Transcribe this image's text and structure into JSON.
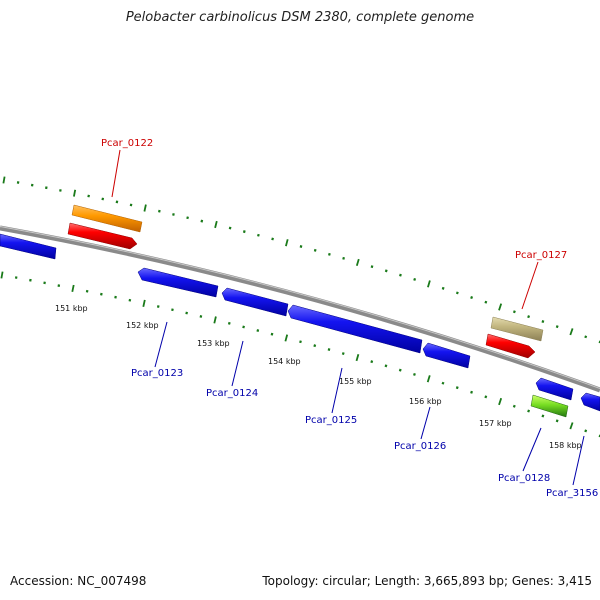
{
  "title": "Pelobacter carbinolicus DSM 2380, complete genome",
  "footer": {
    "accession": "Accession: NC_007498",
    "summary": "Topology: circular; Length: 3,665,893 bp; Genes: 3,415"
  },
  "colors": {
    "backbone": "#8a8a8a",
    "tick": "#1a7a1a",
    "forward_label": "#cc0000",
    "reverse_label": "#0000aa",
    "gene_blue": "#0a0ae6",
    "gene_red": "#ee0000",
    "gene_orange": "#ff9900",
    "gene_khaki": "#c2b680",
    "gene_green": "#33aa22"
  },
  "axis": {
    "tick_labels": [
      "151 kbp",
      "152 kbp",
      "153 kbp",
      "154 kbp",
      "155 kbp",
      "156 kbp",
      "157 kbp",
      "158 kbp"
    ]
  },
  "gene_labels": {
    "pcar_0122": "Pcar_0122",
    "pcar_0127": "Pcar_0127",
    "pcar_0123": "Pcar_0123",
    "pcar_0124": "Pcar_0124",
    "pcar_0125": "Pcar_0125",
    "pcar_0126": "Pcar_0126",
    "pcar_0128": "Pcar_0128",
    "pcar_3156": "Pcar_3156"
  }
}
